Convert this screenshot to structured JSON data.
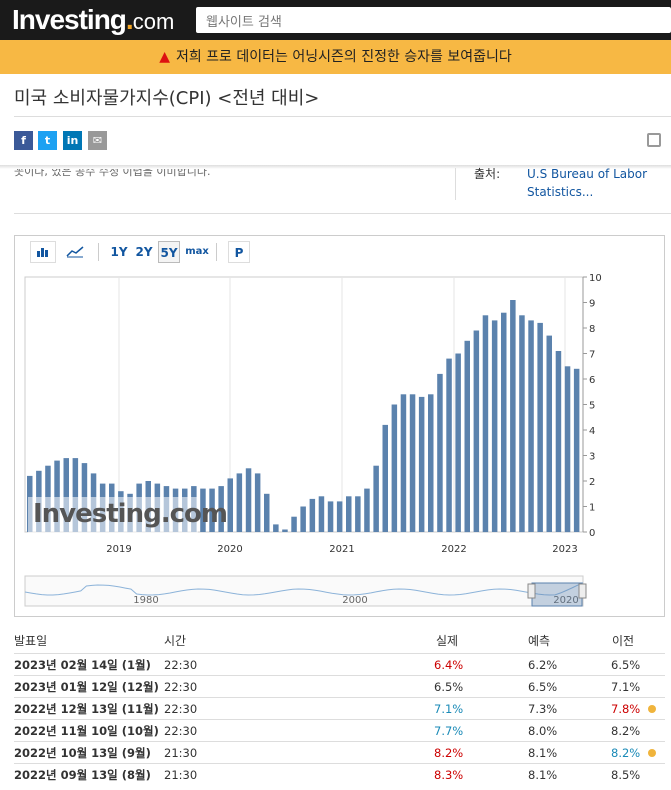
{
  "header": {
    "logo_main": "Investing",
    "logo_com": "com",
    "search_placeholder": "웹사이트 검색"
  },
  "promo": {
    "text": "저희 프로 데이터는 어닝시즌의 진정한 승자를 보여줍니다"
  },
  "page": {
    "title": "미국 소비자물가지수(CPI) <전년 대비>"
  },
  "share": [
    "f",
    "t",
    "in",
    "✉"
  ],
  "cut_text": "꼿이다, 었은 공수 수정 이렵을 이미합니다.",
  "source": {
    "label": "출처:",
    "value": "U.S Bureau of Labor Statistics..."
  },
  "chart_toolbar": {
    "ranges": [
      "1Y",
      "2Y",
      "5Y",
      "max"
    ],
    "selected": "5Y",
    "p_label": "P"
  },
  "chart_data": {
    "type": "bar",
    "title": "미국 소비자물가지수(CPI) <전년 대비>",
    "ylabel": "",
    "xlabel": "",
    "ylim": [
      0,
      10
    ],
    "yticks": [
      0,
      1,
      2,
      3,
      4,
      5,
      6,
      7,
      8,
      9,
      10
    ],
    "x_labels": [
      "2019",
      "2020",
      "2021",
      "2022",
      "2023"
    ],
    "values": [
      2.2,
      2.4,
      2.6,
      2.8,
      2.9,
      2.9,
      2.7,
      2.3,
      1.9,
      1.9,
      1.6,
      1.5,
      1.9,
      2.0,
      1.9,
      1.8,
      1.7,
      1.7,
      1.8,
      1.7,
      1.7,
      1.8,
      2.1,
      2.3,
      2.5,
      2.3,
      1.5,
      0.3,
      0.1,
      0.6,
      1.0,
      1.3,
      1.4,
      1.2,
      1.2,
      1.4,
      1.4,
      1.7,
      2.6,
      4.2,
      5.0,
      5.4,
      5.4,
      5.3,
      5.4,
      6.2,
      6.8,
      7.0,
      7.5,
      7.9,
      8.5,
      8.3,
      8.6,
      9.1,
      8.5,
      8.3,
      8.2,
      7.7,
      7.1,
      6.5,
      6.4
    ],
    "navigator_labels": [
      "1980",
      "2000",
      "2020"
    ],
    "watermark": "Investing.com"
  },
  "table": {
    "headers": {
      "date": "발표일",
      "time": "시간",
      "actual": "실제",
      "forecast": "예측",
      "previous": "이전"
    },
    "rows": [
      {
        "date": "2023년 02월 14일 (1월)",
        "time": "22:30",
        "actual": "6.4%",
        "forecast": "6.2%",
        "previous": "6.5%",
        "actual_color": "red",
        "prev_color": "",
        "dot": false
      },
      {
        "date": "2023년 01월 12일 (12월)",
        "time": "22:30",
        "actual": "6.5%",
        "forecast": "6.5%",
        "previous": "7.1%",
        "actual_color": "",
        "prev_color": "",
        "dot": false
      },
      {
        "date": "2022년 12월 13일 (11월)",
        "time": "22:30",
        "actual": "7.1%",
        "forecast": "7.3%",
        "previous": "7.8%",
        "actual_color": "blue",
        "prev_color": "red",
        "dot": true
      },
      {
        "date": "2022년 11월 10일 (10월)",
        "time": "22:30",
        "actual": "7.7%",
        "forecast": "8.0%",
        "previous": "8.2%",
        "actual_color": "blue",
        "prev_color": "",
        "dot": false
      },
      {
        "date": "2022년 10월 13일 (9월)",
        "time": "21:30",
        "actual": "8.2%",
        "forecast": "8.1%",
        "previous": "8.2%",
        "actual_color": "red",
        "prev_color": "blue",
        "dot": true
      },
      {
        "date": "2022년 09월 13일 (8월)",
        "time": "21:30",
        "actual": "8.3%",
        "forecast": "8.1%",
        "previous": "8.5%",
        "actual_color": "red",
        "prev_color": "",
        "dot": false
      }
    ]
  }
}
